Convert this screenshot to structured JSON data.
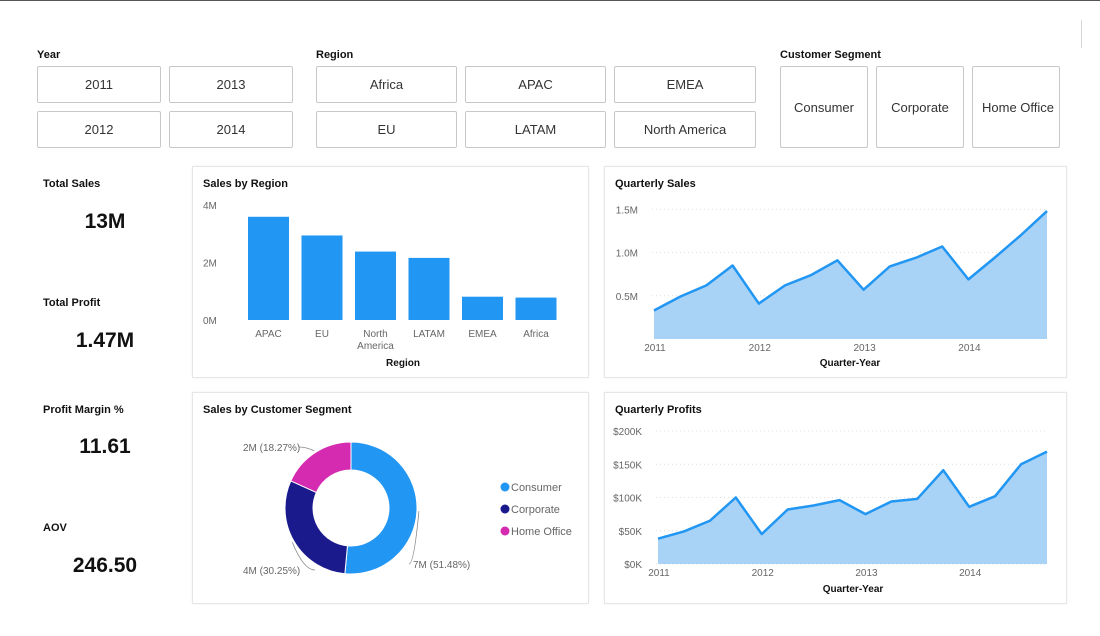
{
  "slicers": {
    "year": {
      "label": "Year",
      "options": [
        "2011",
        "2013",
        "2012",
        "2014"
      ]
    },
    "region": {
      "label": "Region",
      "options": [
        "Africa",
        "APAC",
        "EMEA",
        "EU",
        "LATAM",
        "North America"
      ]
    },
    "segment": {
      "label": "Customer Segment",
      "options": [
        "Consumer",
        "Corporate",
        "Home Office"
      ]
    }
  },
  "kpis": [
    {
      "title": "Total Sales",
      "value": "13M"
    },
    {
      "title": "Total Profit",
      "value": "1.47M"
    },
    {
      "title": "Profit Margin %",
      "value": "11.61"
    },
    {
      "title": "AOV",
      "value": "246.50"
    }
  ],
  "colors": {
    "primary": "#2196F3",
    "area_fill": "#A9D2F7",
    "consumer": "#2196F3",
    "corporate": "#1A1A8C",
    "home_office": "#D42BB0"
  },
  "chart_data": [
    {
      "type": "bar",
      "title": "Sales by Region",
      "xlabel": "Region",
      "ylabel": "",
      "categories": [
        "APAC",
        "EU",
        "North America",
        "LATAM",
        "EMEA",
        "Africa"
      ],
      "category_lines": [
        [
          "APAC"
        ],
        [
          "EU"
        ],
        [
          "North",
          "America"
        ],
        [
          "LATAM"
        ],
        [
          "EMEA"
        ],
        [
          "Africa"
        ]
      ],
      "values": [
        3.59,
        2.94,
        2.38,
        2.16,
        0.81,
        0.78
      ],
      "yticks": [
        "0M",
        "2M",
        "4M"
      ],
      "ylim": [
        0,
        4
      ]
    },
    {
      "type": "area",
      "title": "Quarterly Sales",
      "xlabel": "Quarter-Year",
      "ylabel": "",
      "x": [
        "2011 Q1",
        "2011 Q2",
        "2011 Q3",
        "2011 Q4",
        "2012 Q1",
        "2012 Q2",
        "2012 Q3",
        "2012 Q4",
        "2013 Q1",
        "2013 Q2",
        "2013 Q3",
        "2013 Q4",
        "2014 Q1",
        "2014 Q2",
        "2014 Q3",
        "2014 Q4"
      ],
      "values": [
        0.33,
        0.49,
        0.62,
        0.85,
        0.41,
        0.62,
        0.74,
        0.91,
        0.57,
        0.84,
        0.94,
        1.07,
        0.69,
        0.94,
        1.2,
        1.48
      ],
      "xticks": [
        "2011",
        "2012",
        "2013",
        "2014"
      ],
      "yticks": [
        "0.5M",
        "1.0M",
        "1.5M"
      ],
      "ylim": [
        0,
        1.55
      ]
    },
    {
      "type": "pie",
      "title": "Sales by Customer Segment",
      "categories": [
        "Consumer",
        "Corporate",
        "Home Office"
      ],
      "values": [
        51.48,
        30.25,
        18.27
      ],
      "data_labels": [
        "7M (51.48%)",
        "4M (30.25%)",
        "2M (18.27%)"
      ],
      "legend": "right"
    },
    {
      "type": "area",
      "title": "Quarterly Profits",
      "xlabel": "Quarter-Year",
      "ylabel": "",
      "x": [
        "2011 Q1",
        "2011 Q2",
        "2011 Q3",
        "2011 Q4",
        "2012 Q1",
        "2012 Q2",
        "2012 Q3",
        "2012 Q4",
        "2013 Q1",
        "2013 Q2",
        "2013 Q3",
        "2013 Q4",
        "2014 Q1",
        "2014 Q2",
        "2014 Q3",
        "2014 Q4"
      ],
      "values": [
        38000,
        49000,
        65000,
        100000,
        45000,
        82000,
        88000,
        96000,
        75000,
        94000,
        98000,
        141000,
        86000,
        102000,
        150000,
        169000
      ],
      "xticks": [
        "2011",
        "2012",
        "2013",
        "2014"
      ],
      "yticks": [
        "$0K",
        "$50K",
        "$100K",
        "$150K",
        "$200K"
      ],
      "ylim": [
        0,
        200000
      ]
    }
  ]
}
